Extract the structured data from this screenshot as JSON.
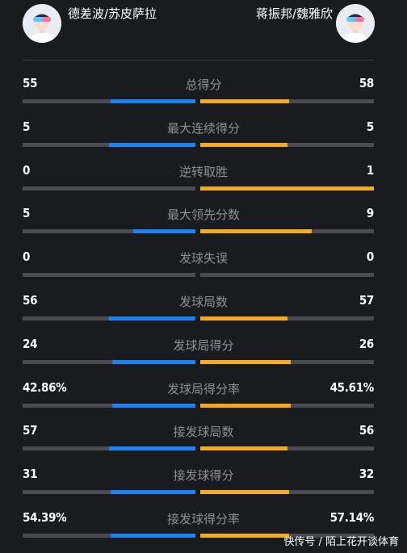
{
  "players": {
    "left_name": "德差波/苏皮萨拉",
    "right_name": "蒋振邦/魏雅欣"
  },
  "colors": {
    "left": "#1a84f5",
    "right": "#f7ac1d",
    "track": "#4a4c52"
  },
  "stats": [
    {
      "label": "总得分",
      "left": "55",
      "right": "58",
      "left_fill": 0.49,
      "right_fill": 0.51
    },
    {
      "label": "最大连续得分",
      "left": "5",
      "right": "5",
      "left_fill": 0.5,
      "right_fill": 0.5
    },
    {
      "label": "逆转取胜",
      "left": "0",
      "right": "1",
      "left_fill": 0,
      "right_fill": 1
    },
    {
      "label": "最大领先分数",
      "left": "5",
      "right": "9",
      "left_fill": 0.36,
      "right_fill": 0.64
    },
    {
      "label": "发球失误",
      "left": "0",
      "right": "0",
      "left_fill": 0,
      "right_fill": 0
    },
    {
      "label": "发球局数",
      "left": "56",
      "right": "57",
      "left_fill": 0.5,
      "right_fill": 0.5
    },
    {
      "label": "发球局得分",
      "left": "24",
      "right": "26",
      "left_fill": 0.48,
      "right_fill": 0.52
    },
    {
      "label": "发球局得分率",
      "left": "42.86%",
      "right": "45.61%",
      "left_fill": 0.48,
      "right_fill": 0.52
    },
    {
      "label": "接发球局数",
      "left": "57",
      "right": "56",
      "left_fill": 0.5,
      "right_fill": 0.5
    },
    {
      "label": "接发球得分",
      "left": "31",
      "right": "32",
      "left_fill": 0.49,
      "right_fill": 0.51
    },
    {
      "label": "接发球得分率",
      "left": "54.39%",
      "right": "57.14%",
      "left_fill": 0.49,
      "right_fill": 0.51
    }
  ],
  "watermark": "快传号 / 陌上花开谈体育"
}
